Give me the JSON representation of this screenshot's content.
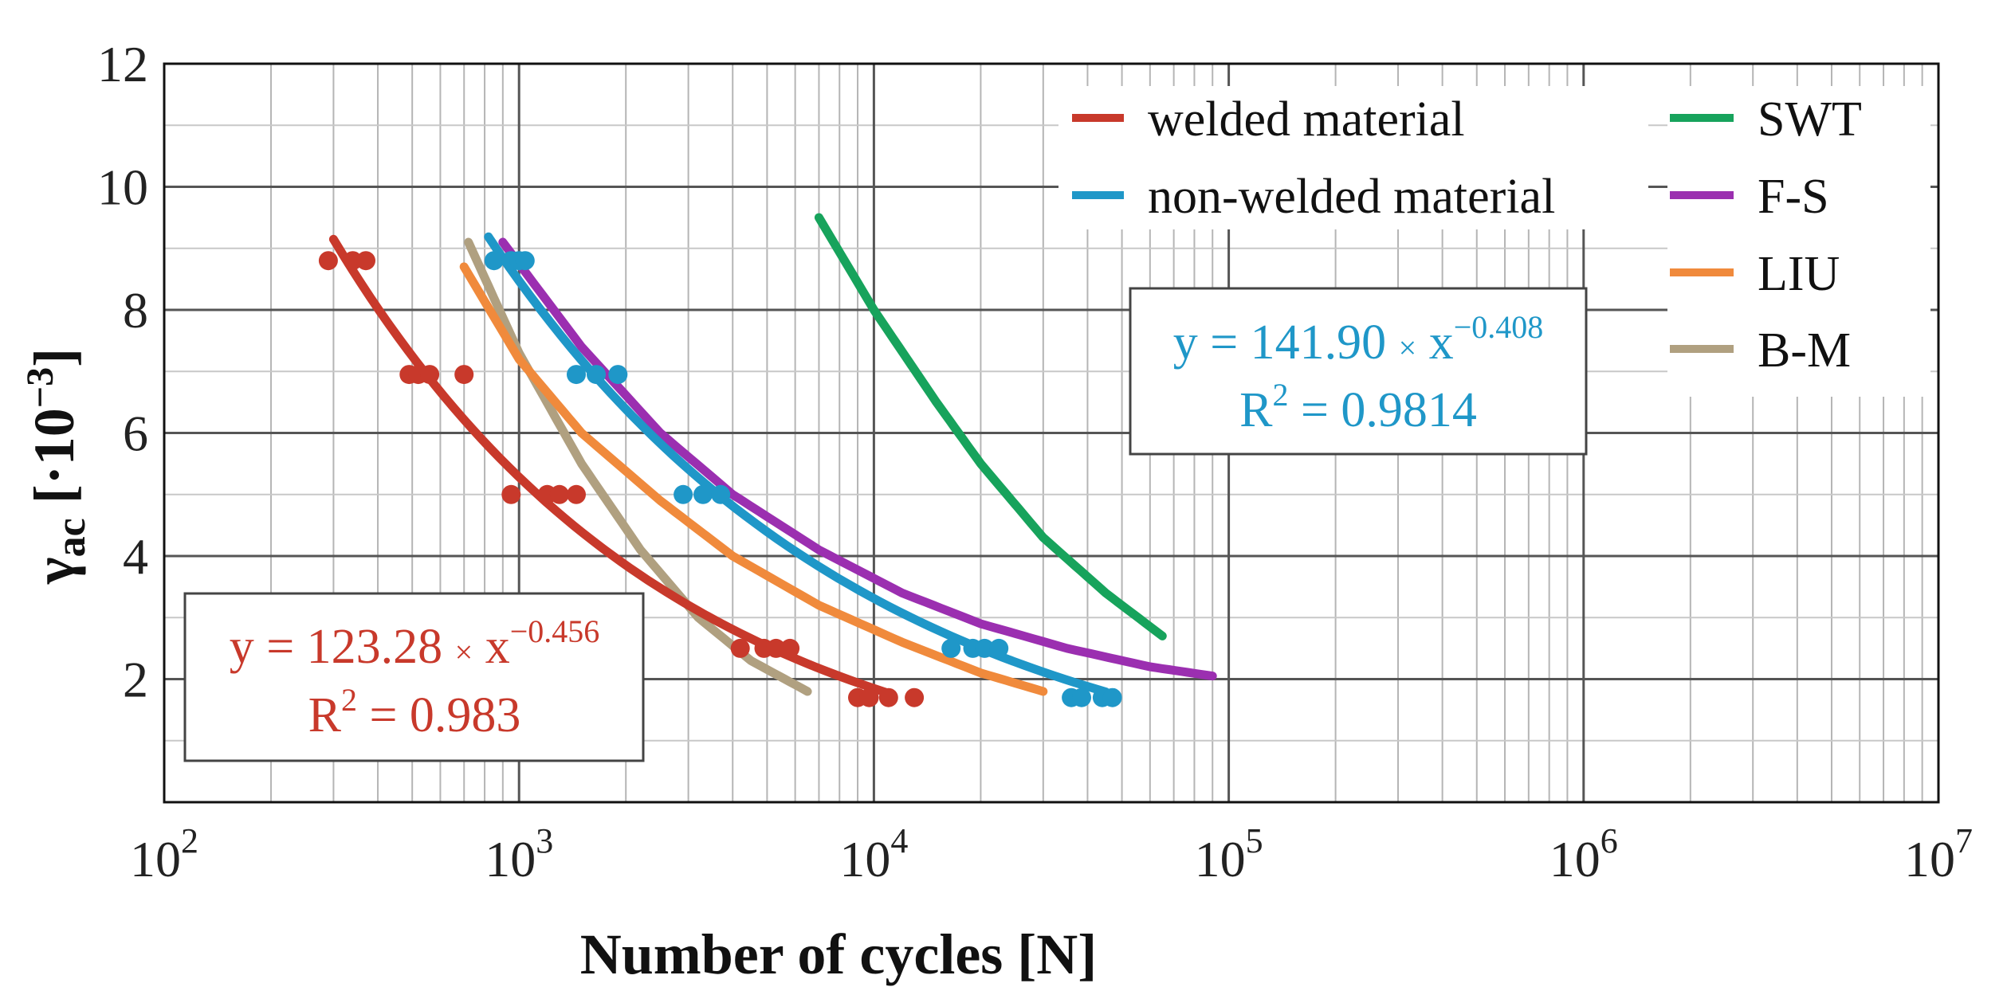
{
  "chart_data": {
    "type": "scatter",
    "title": "",
    "xlabel": "Number of cycles [N]",
    "ylabel_main": "γ",
    "ylabel_sub": "ac",
    "ylabel_unit": " [·10",
    "ylabel_exp": "−3",
    "ylabel_close": "]",
    "x_scale": "log",
    "xlim": [
      100,
      10000000
    ],
    "ylim": [
      0,
      12
    ],
    "x_ticks": [
      {
        "value": 100,
        "base": "10",
        "exp": "2"
      },
      {
        "value": 1000,
        "base": "10",
        "exp": "3"
      },
      {
        "value": 10000,
        "base": "10",
        "exp": "4"
      },
      {
        "value": 100000,
        "base": "10",
        "exp": "5"
      },
      {
        "value": 1000000,
        "base": "10",
        "exp": "6"
      },
      {
        "value": 10000000,
        "base": "10",
        "exp": "7"
      }
    ],
    "y_ticks": [
      "2",
      "4",
      "6",
      "8",
      "10",
      "12"
    ],
    "y_tick_values": [
      2,
      4,
      6,
      8,
      10,
      12
    ],
    "grid": true,
    "series": [
      {
        "name": "welded material",
        "color": "#c8392b",
        "kind": "fit_with_points",
        "fit": {
          "a": 123.28,
          "b": -0.456,
          "x_range": [
            300,
            11000
          ]
        },
        "points": [
          [
            290,
            8.8
          ],
          [
            340,
            8.8
          ],
          [
            370,
            8.8
          ],
          [
            490,
            6.95
          ],
          [
            520,
            6.95
          ],
          [
            560,
            6.95
          ],
          [
            700,
            6.95
          ],
          [
            950,
            5.0
          ],
          [
            1200,
            5.0
          ],
          [
            1300,
            5.0
          ],
          [
            1450,
            5.0
          ],
          [
            4200,
            2.5
          ],
          [
            4900,
            2.5
          ],
          [
            5300,
            2.5
          ],
          [
            5800,
            2.5
          ],
          [
            9000,
            1.7
          ],
          [
            9700,
            1.7
          ],
          [
            11000,
            1.7
          ],
          [
            13000,
            1.7
          ]
        ]
      },
      {
        "name": "non-welded material",
        "color": "#1f97c8",
        "kind": "fit_with_points",
        "fit": {
          "a": 141.9,
          "b": -0.408,
          "x_range": [
            820,
            45000
          ]
        },
        "points": [
          [
            850,
            8.8
          ],
          [
            950,
            8.8
          ],
          [
            1000,
            8.8
          ],
          [
            1040,
            8.8
          ],
          [
            1450,
            6.95
          ],
          [
            1650,
            6.95
          ],
          [
            1900,
            6.95
          ],
          [
            2900,
            5.0
          ],
          [
            3300,
            5.0
          ],
          [
            3700,
            5.0
          ],
          [
            16500,
            2.5
          ],
          [
            19000,
            2.5
          ],
          [
            20500,
            2.5
          ],
          [
            22500,
            2.5
          ],
          [
            36000,
            1.7
          ],
          [
            38500,
            1.7
          ],
          [
            44000,
            1.7
          ],
          [
            47000,
            1.7
          ]
        ]
      },
      {
        "name": "SWT",
        "color": "#17a35c",
        "kind": "curve",
        "x": [
          7000,
          10000,
          15000,
          20000,
          30000,
          45000,
          65000
        ],
        "y": [
          9.5,
          8.0,
          6.5,
          5.5,
          4.3,
          3.4,
          2.7
        ]
      },
      {
        "name": "F-S",
        "color": "#9b2fb0",
        "kind": "curve",
        "x": [
          900,
          1500,
          2500,
          4000,
          7000,
          12000,
          20000,
          35000,
          60000,
          90000
        ],
        "y": [
          9.1,
          7.4,
          6.0,
          5.0,
          4.1,
          3.4,
          2.9,
          2.5,
          2.2,
          2.05
        ]
      },
      {
        "name": "LIU",
        "color": "#f08a3c",
        "kind": "curve",
        "x": [
          700,
          1000,
          1500,
          2500,
          4000,
          7000,
          12000,
          20000,
          30000
        ],
        "y": [
          8.7,
          7.2,
          6.0,
          4.9,
          4.0,
          3.2,
          2.6,
          2.1,
          1.8
        ]
      },
      {
        "name": "B-M",
        "color": "#b0a080",
        "kind": "curve",
        "x": [
          720,
          1000,
          1500,
          2200,
          3200,
          4500,
          6500
        ],
        "y": [
          9.1,
          7.3,
          5.5,
          4.1,
          3.0,
          2.3,
          1.8
        ]
      }
    ],
    "legend_placement": "top-right",
    "equations": [
      {
        "prefix": "y = 141.90 ",
        "times": "×",
        "x": " x",
        "exp": "−0.408",
        "r2_label": "R",
        "r2_sup": "2",
        "r2_value": " = 0.9814",
        "color": "#1f97c8"
      },
      {
        "prefix": "y = 123.28 ",
        "times": "×",
        "x": " x",
        "exp": "−0.456",
        "r2_label": "R",
        "r2_sup": "2",
        "r2_value": " = 0.983",
        "color": "#c8392b"
      }
    ]
  }
}
